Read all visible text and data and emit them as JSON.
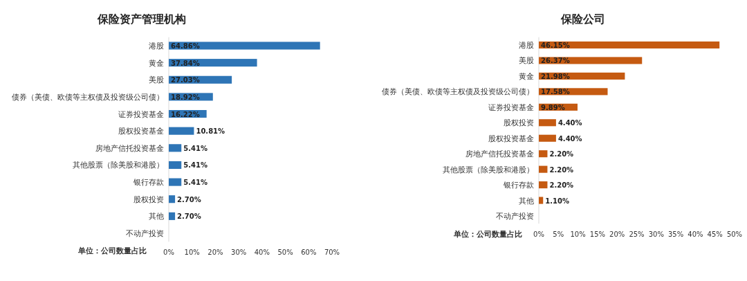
{
  "chart_data": [
    {
      "type": "bar",
      "orientation": "horizontal",
      "title": "保险资产管理机构",
      "categories": [
        "港股",
        "黄金",
        "美股",
        "债券（美债、欧债等主权债及投资级公司债）",
        "证券投资基金",
        "股权投资基金",
        "房地产信托投资基金",
        "其他股票（除美股和港股）",
        "银行存款",
        "股权投资",
        "其他",
        "不动产投资"
      ],
      "series": [
        {
          "color": "#2e75b6",
          "values": [
            64.86,
            37.84,
            27.03,
            18.92,
            16.22,
            10.81,
            5.41,
            5.41,
            5.41,
            2.7,
            2.7,
            0
          ],
          "value_labels": [
            "64.86%",
            "37.84%",
            "27.03%",
            "18.92%",
            "16.22%",
            "10.81%",
            "5.41%",
            "5.41%",
            "5.41%",
            "2.70%",
            "2.70%",
            null
          ]
        }
      ],
      "xlim": [
        0,
        70
      ],
      "xticks": [
        {
          "value": 0,
          "label": "0%"
        },
        {
          "value": 10,
          "label": "10%"
        },
        {
          "value": 20,
          "label": "20%"
        },
        {
          "value": 30,
          "label": "30%"
        },
        {
          "value": 40,
          "label": "40%"
        },
        {
          "value": 50,
          "label": "50%"
        },
        {
          "value": 60,
          "label": "60%"
        },
        {
          "value": 70,
          "label": "70%"
        }
      ],
      "annotations": [
        "单位：公司数量占比"
      ],
      "grid": false
    },
    {
      "type": "bar",
      "orientation": "horizontal",
      "title": "保险公司",
      "categories": [
        "港股",
        "美股",
        "黄金",
        "债券（美债、欧债等主权债及投资级公司债）",
        "证券投资基金",
        "股权投资",
        "股权投资基金",
        "房地产信托投资基金",
        "其他股票（除美股和港股）",
        "银行存款",
        "其他",
        "不动产投资"
      ],
      "series": [
        {
          "color": "#c55a11",
          "values": [
            46.15,
            26.37,
            21.98,
            17.58,
            9.89,
            4.4,
            4.4,
            2.2,
            2.2,
            2.2,
            1.1,
            0
          ],
          "value_labels": [
            "46.15%",
            "26.37%",
            "21.98%",
            "17.58%",
            "9.89%",
            "4.40%",
            "4.40%",
            "2.20%",
            "2.20%",
            "2.20%",
            "1.10%",
            null
          ]
        }
      ],
      "xlim": [
        0,
        50
      ],
      "xticks": [
        {
          "value": 0,
          "label": "0%"
        },
        {
          "value": 5,
          "label": "5%"
        },
        {
          "value": 10,
          "label": "10%"
        },
        {
          "value": 15,
          "label": "15%"
        },
        {
          "value": 20,
          "label": "20%"
        },
        {
          "value": 25,
          "label": "25%"
        },
        {
          "value": 30,
          "label": "30%"
        },
        {
          "value": 35,
          "label": "35%"
        },
        {
          "value": 40,
          "label": "40%"
        },
        {
          "value": 45,
          "label": "45%"
        },
        {
          "value": 50,
          "label": "50%"
        }
      ],
      "annotations": [
        "单位：公司数量占比"
      ],
      "grid": false
    }
  ]
}
